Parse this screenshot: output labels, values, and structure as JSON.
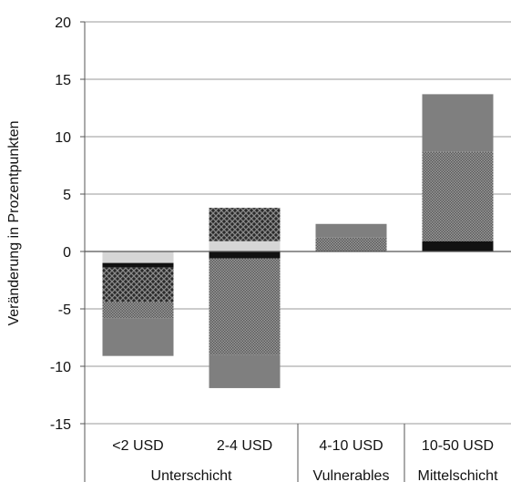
{
  "chart_data": {
    "type": "bar",
    "stacked": true,
    "title": "",
    "ylabel": "Veränderung in Prozentpunkten",
    "xlabel": "",
    "ylim": [
      -15,
      20
    ],
    "yticks": [
      20,
      15,
      10,
      5,
      0,
      -5,
      -10,
      -15
    ],
    "ytick_labels": [
      "20",
      "15",
      "10",
      "5",
      "0",
      "-5",
      "-10",
      "-15"
    ],
    "grid": true,
    "legend": "none",
    "categories": [
      "<2 USD",
      "2-4 USD",
      "4-10 USD",
      "10-50 USD"
    ],
    "groups": [
      {
        "label": "Unterschicht",
        "span": [
          0,
          1
        ]
      },
      {
        "label": "Vulnerables",
        "span": [
          2,
          2
        ]
      },
      {
        "label": "Mittelschicht",
        "span": [
          3,
          3
        ]
      }
    ],
    "series": [
      {
        "pattern": "light-gray",
        "color": "#d6d6d6",
        "values": [
          -1.0,
          0.9,
          0,
          0
        ]
      },
      {
        "pattern": "black",
        "color": "#111111",
        "values": [
          -0.4,
          -0.6,
          0,
          0.9
        ]
      },
      {
        "pattern": "crosshatch",
        "color": "#333333",
        "values": [
          -3.0,
          2.9,
          0,
          0
        ]
      },
      {
        "pattern": "fine-dots",
        "color": "#8a8a8a",
        "values": [
          -1.4,
          -8.4,
          1.2,
          7.8
        ]
      },
      {
        "pattern": "gray",
        "color": "#7f7f7f",
        "values": [
          -3.3,
          -2.9,
          1.2,
          5.0
        ]
      }
    ]
  }
}
